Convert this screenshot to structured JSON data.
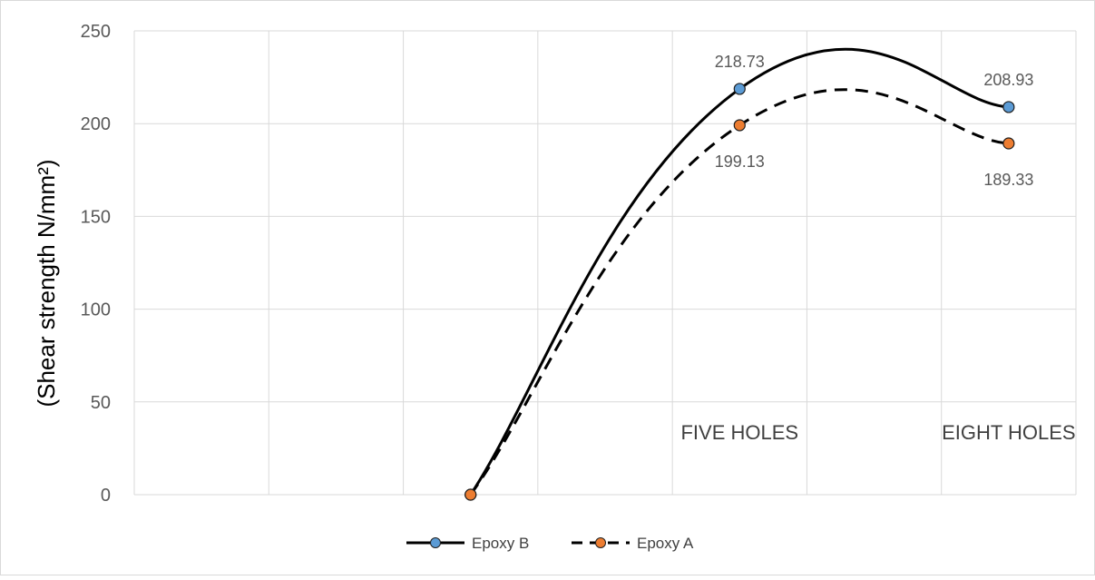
{
  "chart_data": {
    "type": "line",
    "title": "",
    "xlabel": "",
    "ylabel": "(Shear strength N/mm²)",
    "ylim": [
      0,
      250
    ],
    "yticks": [
      0,
      50,
      100,
      150,
      200,
      250
    ],
    "x_slots": 7,
    "grid": true,
    "smooth": true,
    "categories": [
      {
        "slot": 2,
        "label": ""
      },
      {
        "slot": 4,
        "label": "FIVE HOLES"
      },
      {
        "slot": 6,
        "label": "EIGHT HOLES"
      }
    ],
    "series": [
      {
        "name": "Epoxy B",
        "line_color": "#000000",
        "marker_color": "#5b9bd5",
        "dashed": false,
        "points": [
          {
            "slot": 2,
            "value": 0
          },
          {
            "slot": 4,
            "value": 218.73,
            "label": "218.73"
          },
          {
            "slot": 6,
            "value": 208.93,
            "label": "208.93"
          }
        ]
      },
      {
        "name": "Epoxy A",
        "line_color": "#000000",
        "marker_color": "#ed7d31",
        "dashed": true,
        "points": [
          {
            "slot": 2,
            "value": 0
          },
          {
            "slot": 4,
            "value": 199.13,
            "label": "199.13"
          },
          {
            "slot": 6,
            "value": 189.33,
            "label": "189.33"
          }
        ]
      }
    ],
    "legend_position": "bottom"
  }
}
